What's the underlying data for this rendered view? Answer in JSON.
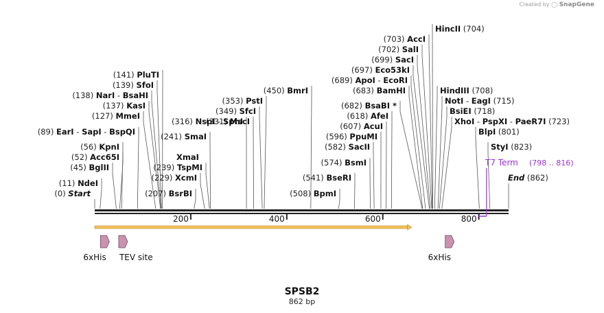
{
  "credit": {
    "prefix": "Created by",
    "brand": "SnapGene"
  },
  "map": {
    "name": "SPSB2",
    "length_label": "862 bp",
    "length": 862,
    "ticks": [
      {
        "pos": 200,
        "label": "200"
      },
      {
        "pos": 400,
        "label": "400"
      },
      {
        "pos": 600,
        "label": "600"
      },
      {
        "pos": 800,
        "label": "800"
      }
    ],
    "sites": [
      {
        "pos": 0,
        "num": "(0)",
        "parts": [
          {
            "t": "Start",
            "s": "it"
          }
        ]
      },
      {
        "pos": 11,
        "num": "(11)",
        "parts": [
          {
            "t": "NdeI",
            "s": "nm"
          }
        ]
      },
      {
        "pos": 45,
        "num": "(45)",
        "parts": [
          {
            "t": "BglII",
            "s": "nm"
          }
        ]
      },
      {
        "pos": 52,
        "num": "(52)",
        "parts": [
          {
            "t": "Acc65I",
            "s": "nm"
          }
        ]
      },
      {
        "pos": 56,
        "num": "(56)",
        "parts": [
          {
            "t": "KpnI",
            "s": "nm"
          }
        ]
      },
      {
        "pos": 89,
        "num": "(89)",
        "parts": [
          {
            "t": "EarI",
            "s": "nm"
          },
          {
            "t": " - ",
            "s": "n"
          },
          {
            "t": "SapI",
            "s": "nm"
          },
          {
            "t": " - ",
            "s": "n"
          },
          {
            "t": "BspQI",
            "s": "nm"
          }
        ]
      },
      {
        "pos": 127,
        "num": "(127)",
        "parts": [
          {
            "t": "MmeI",
            "s": "nm"
          }
        ]
      },
      {
        "pos": 137,
        "num": "(137)",
        "parts": [
          {
            "t": "KasI",
            "s": "nm"
          }
        ]
      },
      {
        "pos": 138,
        "num": "(138)",
        "parts": [
          {
            "t": "NarI",
            "s": "nm"
          },
          {
            "t": " - ",
            "s": "n"
          },
          {
            "t": "BsaHI",
            "s": "nm"
          }
        ]
      },
      {
        "pos": 139,
        "num": "(139)",
        "parts": [
          {
            "t": "SfoI",
            "s": "nm"
          }
        ]
      },
      {
        "pos": 141,
        "num": "(141)",
        "parts": [
          {
            "t": "PluTI",
            "s": "nm"
          }
        ]
      },
      {
        "pos": 207,
        "num": "(207)",
        "parts": [
          {
            "t": "BsrBI",
            "s": "nm"
          }
        ]
      },
      {
        "pos": 229,
        "num": "(229)",
        "parts": [
          {
            "t": "XcmI",
            "s": "nm"
          }
        ]
      },
      {
        "pos": 239,
        "num": "(239)",
        "parts": [
          {
            "t": "TspMI",
            "s": "nm"
          }
        ]
      },
      {
        "pos": 239,
        "num": "",
        "parts": [
          {
            "t": "XmaI",
            "s": "nm"
          }
        ]
      },
      {
        "pos": 241,
        "num": "(241)",
        "parts": [
          {
            "t": "SmaI",
            "s": "nm"
          }
        ]
      },
      {
        "pos": 316,
        "num": "(316)",
        "parts": [
          {
            "t": "NspI",
            "s": "nm"
          },
          {
            "t": " - ",
            "s": "n"
          },
          {
            "t": "SphI",
            "s": "nm"
          }
        ]
      },
      {
        "pos": 331,
        "num": "(331)",
        "parts": [
          {
            "t": "MscI",
            "s": "nm"
          }
        ]
      },
      {
        "pos": 349,
        "num": "(349)",
        "parts": [
          {
            "t": "SfcI",
            "s": "nm"
          }
        ]
      },
      {
        "pos": 353,
        "num": "(353)",
        "parts": [
          {
            "t": "PstI",
            "s": "nm"
          }
        ]
      },
      {
        "pos": 450,
        "num": "(450)",
        "parts": [
          {
            "t": "BmrI",
            "s": "nm"
          }
        ]
      },
      {
        "pos": 508,
        "num": "(508)",
        "parts": [
          {
            "t": "BpmI",
            "s": "nm"
          }
        ]
      },
      {
        "pos": 541,
        "num": "(541)",
        "parts": [
          {
            "t": "BseRI",
            "s": "nm"
          }
        ]
      },
      {
        "pos": 574,
        "num": "(574)",
        "parts": [
          {
            "t": "BsmI",
            "s": "nm"
          }
        ]
      },
      {
        "pos": 582,
        "num": "(582)",
        "parts": [
          {
            "t": "SacII",
            "s": "nm"
          }
        ]
      },
      {
        "pos": 596,
        "num": "(596)",
        "parts": [
          {
            "t": "PpuMI",
            "s": "nm"
          }
        ]
      },
      {
        "pos": 607,
        "num": "(607)",
        "parts": [
          {
            "t": "AcuI",
            "s": "nm"
          }
        ]
      },
      {
        "pos": 618,
        "num": "(618)",
        "parts": [
          {
            "t": "AfeI",
            "s": "nm"
          }
        ]
      },
      {
        "pos": 682,
        "num": "(682)",
        "parts": [
          {
            "t": "BsaBI *",
            "s": "nm"
          }
        ]
      },
      {
        "pos": 683,
        "num": "(683)",
        "parts": [
          {
            "t": "BamHI",
            "s": "nm"
          }
        ]
      },
      {
        "pos": 689,
        "num": "(689)",
        "parts": [
          {
            "t": "ApoI",
            "s": "nm"
          },
          {
            "t": " - ",
            "s": "n"
          },
          {
            "t": "EcoRI",
            "s": "nm"
          }
        ]
      },
      {
        "pos": 697,
        "num": "(697)",
        "parts": [
          {
            "t": "Eco53kI",
            "s": "nm"
          }
        ]
      },
      {
        "pos": 699,
        "num": "(699)",
        "parts": [
          {
            "t": "SacI",
            "s": "nm"
          }
        ]
      },
      {
        "pos": 702,
        "num": "(702)",
        "parts": [
          {
            "t": "SalI",
            "s": "nm"
          }
        ]
      },
      {
        "pos": 703,
        "num": "(703)",
        "parts": [
          {
            "t": "AccI",
            "s": "nm"
          }
        ]
      },
      {
        "pos": 704,
        "num": "(704)",
        "parts": [
          {
            "t": "HincII",
            "s": "nm"
          }
        ]
      },
      {
        "pos": 708,
        "num": "(708)",
        "parts": [
          {
            "t": "HindIII",
            "s": "nm"
          }
        ]
      },
      {
        "pos": 715,
        "num": "(715)",
        "parts": [
          {
            "t": "NotI",
            "s": "nm"
          },
          {
            "t": " - ",
            "s": "n"
          },
          {
            "t": "EagI",
            "s": "nm"
          }
        ]
      },
      {
        "pos": 718,
        "num": "(718)",
        "parts": [
          {
            "t": "BsiEI",
            "s": "nm"
          }
        ]
      },
      {
        "pos": 723,
        "num": "(723)",
        "parts": [
          {
            "t": "XhoI",
            "s": "nm"
          },
          {
            "t": " - ",
            "s": "n"
          },
          {
            "t": "PspXI",
            "s": "nm"
          },
          {
            "t": " - ",
            "s": "n"
          },
          {
            "t": "PaeR7I",
            "s": "nm"
          }
        ]
      },
      {
        "pos": 801,
        "num": "(801)",
        "parts": [
          {
            "t": "BlpI",
            "s": "nm"
          }
        ]
      },
      {
        "pos": 823,
        "num": "(823)",
        "parts": [
          {
            "t": "StyI",
            "s": "nm"
          }
        ]
      },
      {
        "pos": 862,
        "num": "(862)",
        "parts": [
          {
            "t": "End",
            "s": "it"
          }
        ]
      }
    ],
    "t7_term": {
      "name": "T7 Term",
      "range": "(798 .. 816)",
      "start": 798,
      "end": 816,
      "color": "#9b30d9"
    },
    "features": [
      {
        "name": "6xHis",
        "pos": 12,
        "color": "#c993b0"
      },
      {
        "name": "TEV site",
        "pos": 50,
        "color": "#c993b0"
      },
      {
        "name": "6xHis",
        "pos": 730,
        "color": "#c993b0"
      }
    ],
    "orf": {
      "start": 0,
      "end": 660,
      "color": "#f3c35c"
    }
  }
}
